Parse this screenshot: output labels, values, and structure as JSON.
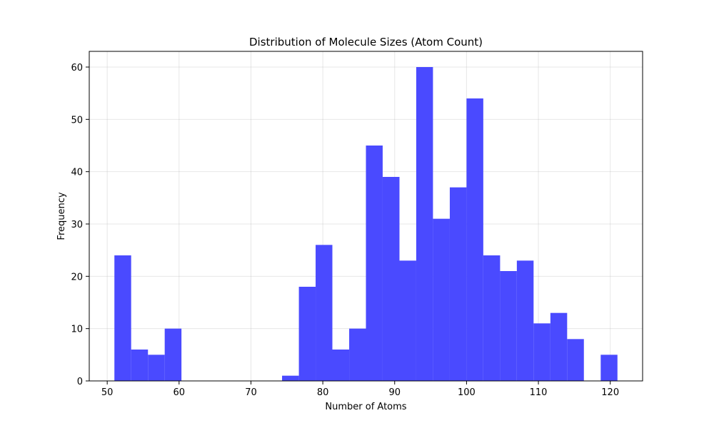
{
  "chart_data": {
    "type": "bar",
    "title": "Distribution of Molecule Sizes (Atom Count)",
    "xlabel": "Number of Atoms",
    "ylabel": "Frequency",
    "xlim": [
      47.5,
      124.5
    ],
    "ylim": [
      0,
      63
    ],
    "xticks": [
      50,
      60,
      70,
      80,
      90,
      100,
      110,
      120
    ],
    "yticks": [
      0,
      10,
      20,
      30,
      40,
      50,
      60
    ],
    "grid": true,
    "color": "#4a4aff",
    "bins": [
      {
        "x0": 51.0,
        "x1": 53.33,
        "value": 24
      },
      {
        "x0": 53.33,
        "x1": 55.67,
        "value": 6
      },
      {
        "x0": 55.67,
        "x1": 58.0,
        "value": 5
      },
      {
        "x0": 58.0,
        "x1": 60.33,
        "value": 10
      },
      {
        "x0": 60.33,
        "x1": 62.67,
        "value": 0
      },
      {
        "x0": 62.67,
        "x1": 65.0,
        "value": 0
      },
      {
        "x0": 65.0,
        "x1": 67.33,
        "value": 0
      },
      {
        "x0": 67.33,
        "x1": 69.67,
        "value": 0
      },
      {
        "x0": 69.67,
        "x1": 72.0,
        "value": 0
      },
      {
        "x0": 72.0,
        "x1": 74.33,
        "value": 0
      },
      {
        "x0": 74.33,
        "x1": 76.67,
        "value": 1
      },
      {
        "x0": 76.67,
        "x1": 79.0,
        "value": 18
      },
      {
        "x0": 79.0,
        "x1": 81.33,
        "value": 26
      },
      {
        "x0": 81.33,
        "x1": 83.67,
        "value": 6
      },
      {
        "x0": 83.67,
        "x1": 86.0,
        "value": 10
      },
      {
        "x0": 86.0,
        "x1": 88.33,
        "value": 45
      },
      {
        "x0": 88.33,
        "x1": 90.67,
        "value": 39
      },
      {
        "x0": 90.67,
        "x1": 93.0,
        "value": 23
      },
      {
        "x0": 93.0,
        "x1": 95.33,
        "value": 60
      },
      {
        "x0": 95.33,
        "x1": 97.67,
        "value": 31
      },
      {
        "x0": 97.67,
        "x1": 100.0,
        "value": 37
      },
      {
        "x0": 100.0,
        "x1": 102.33,
        "value": 54
      },
      {
        "x0": 102.33,
        "x1": 104.67,
        "value": 24
      },
      {
        "x0": 104.67,
        "x1": 107.0,
        "value": 21
      },
      {
        "x0": 107.0,
        "x1": 109.33,
        "value": 23
      },
      {
        "x0": 109.33,
        "x1": 111.67,
        "value": 11
      },
      {
        "x0": 111.67,
        "x1": 114.0,
        "value": 13
      },
      {
        "x0": 114.0,
        "x1": 116.33,
        "value": 8
      },
      {
        "x0": 116.33,
        "x1": 118.67,
        "value": 0
      },
      {
        "x0": 118.67,
        "x1": 121.0,
        "value": 5
      }
    ]
  }
}
